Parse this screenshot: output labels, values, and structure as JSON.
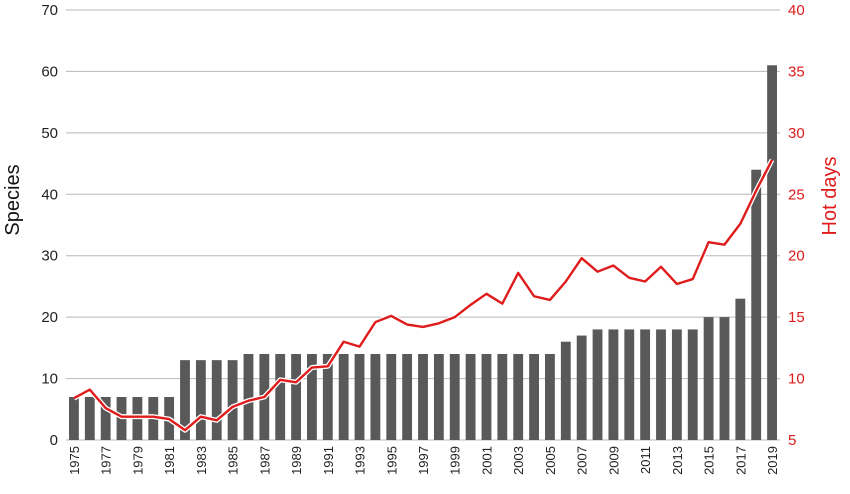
{
  "chart_data": {
    "type": "bar",
    "title": "",
    "x": [
      1975,
      1976,
      1977,
      1978,
      1979,
      1980,
      1981,
      1982,
      1983,
      1984,
      1985,
      1986,
      1987,
      1988,
      1989,
      1990,
      1991,
      1992,
      1993,
      1994,
      1995,
      1996,
      1997,
      1998,
      1999,
      2000,
      2001,
      2002,
      2003,
      2004,
      2005,
      2006,
      2007,
      2008,
      2009,
      2010,
      2011,
      2012,
      2013,
      2014,
      2015,
      2016,
      2017,
      2018,
      2019
    ],
    "x_tick_labels": [
      "1975",
      "1977",
      "1979",
      "1981",
      "1983",
      "1985",
      "1987",
      "1989",
      "1991",
      "1993",
      "1995",
      "1997",
      "1999",
      "2001",
      "2003",
      "2005",
      "2007",
      "2009",
      "2011",
      "2013",
      "2015",
      "2017",
      "2019"
    ],
    "ylabel_left": "Species",
    "ylabel_right": "Hot days",
    "ylim_left": [
      0,
      70
    ],
    "yticks_left": [
      0,
      10,
      20,
      30,
      40,
      50,
      60,
      70
    ],
    "ylim_right": [
      5,
      40
    ],
    "yticks_right": [
      5,
      10,
      15,
      20,
      25,
      30,
      35,
      40
    ],
    "grid": true,
    "colors": {
      "bars": "#595959",
      "line": "#e01b1b"
    },
    "series": [
      {
        "type": "bar",
        "axis": "left",
        "values": [
          7,
          7,
          7,
          7,
          7,
          7,
          7,
          13,
          13,
          13,
          13,
          14,
          14,
          14,
          14,
          14,
          14,
          14,
          14,
          14,
          14,
          14,
          14,
          14,
          14,
          14,
          14,
          14,
          14,
          14,
          14,
          16,
          17,
          18,
          18,
          18,
          18,
          18,
          18,
          18,
          20,
          20,
          23,
          44,
          61
        ]
      },
      {
        "type": "line",
        "axis": "right",
        "values": [
          8.4,
          9.1,
          7.6,
          6.9,
          6.9,
          6.9,
          6.7,
          5.8,
          6.9,
          6.6,
          7.7,
          8.2,
          8.5,
          9.9,
          9.7,
          10.9,
          11.0,
          13.0,
          12.6,
          14.6,
          15.1,
          14.4,
          14.2,
          14.5,
          15.0,
          16.0,
          16.9,
          16.1,
          18.6,
          16.7,
          16.4,
          17.9,
          19.8,
          18.7,
          19.2,
          18.2,
          17.9,
          19.1,
          17.7,
          18.1,
          21.1,
          20.9,
          22.6,
          25.3,
          27.8
        ]
      }
    ]
  }
}
